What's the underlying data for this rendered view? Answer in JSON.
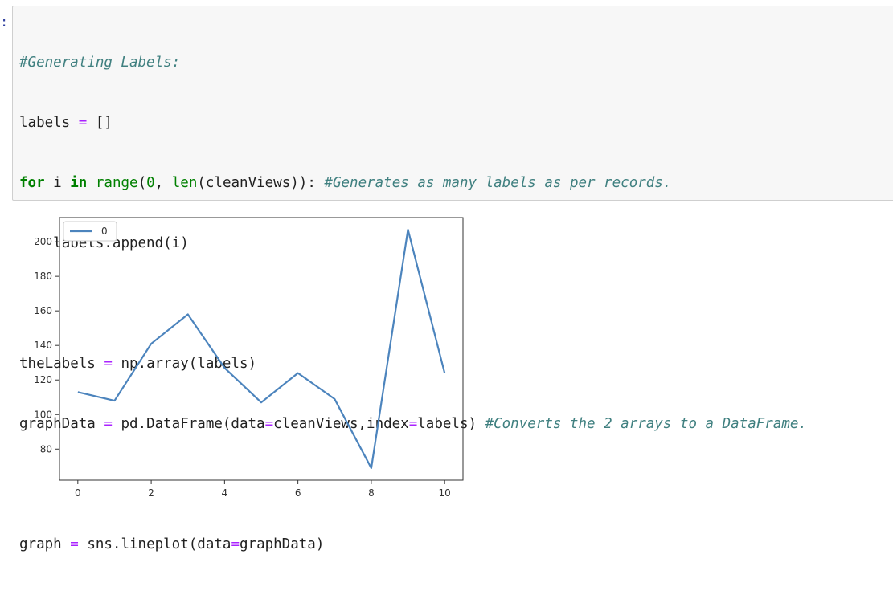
{
  "cell": {
    "prompt": ":",
    "code": {
      "comment_title": "#Generating Labels:",
      "labels_var": "labels",
      "eq": "=",
      "empty_list": "[]",
      "for_kw": "for",
      "loop_var": "i",
      "in_kw": "in",
      "range_fn": "range",
      "paren_open": "(",
      "zero": "0",
      "comma": ",",
      "len_fn": "len",
      "clean_views_arg": "(cleanViews)):",
      "comment_generates": "#Generates as many labels as per records.",
      "append_call": "labels.append(i)",
      "the_labels_var": "theLabels",
      "np_array_call": "np.array(labels)",
      "graph_data_var": "graphData",
      "df_call_prefix": "pd.DataFrame(data",
      "df_data_arg": "cleanViews,index",
      "df_index_arg": "labels)",
      "comment_converts": "#Converts the 2 arrays to a DataFrame.",
      "graph_var": "graph",
      "lineplot_prefix": "sns.lineplot(data",
      "lineplot_arg": "graphData)"
    }
  },
  "chart_data": {
    "type": "line",
    "x": [
      0,
      1,
      2,
      3,
      4,
      5,
      6,
      7,
      8,
      9,
      10
    ],
    "series": [
      {
        "name": "0",
        "values": [
          113,
          108,
          141,
          158,
          127,
          107,
          124,
          109,
          69,
          207,
          124
        ],
        "color": "#4C84BD"
      }
    ],
    "xticks": [
      "0",
      "2",
      "4",
      "6",
      "8",
      "10"
    ],
    "yticks": [
      "80",
      "100",
      "120",
      "140",
      "160",
      "180",
      "200"
    ],
    "xlim": [
      -0.5,
      10.5
    ],
    "ylim": [
      62,
      214
    ],
    "legend_position": "top-left",
    "grid": false
  }
}
